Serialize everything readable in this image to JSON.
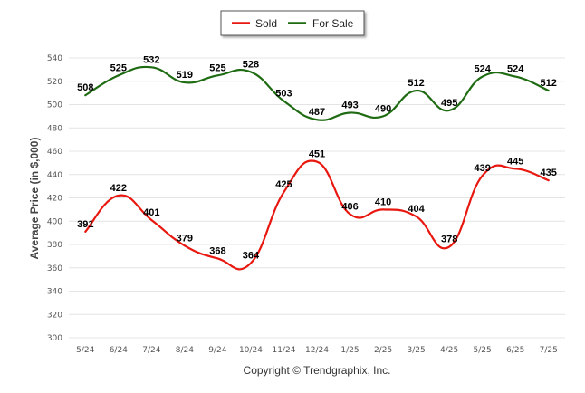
{
  "chart_data": {
    "type": "line",
    "categories": [
      "5/24",
      "6/24",
      "7/24",
      "8/24",
      "9/24",
      "10/24",
      "11/24",
      "12/24",
      "1/25",
      "2/25",
      "3/25",
      "4/25",
      "5/25",
      "6/25",
      "7/25"
    ],
    "series": [
      {
        "name": "Sold",
        "color": "#e8170f",
        "values": [
          391,
          422,
          401,
          379,
          368,
          364,
          425,
          451,
          406,
          410,
          404,
          378,
          439,
          445,
          435
        ]
      },
      {
        "name": "For Sale",
        "color": "#1e6b12",
        "values": [
          508,
          525,
          532,
          519,
          525,
          528,
          503,
          487,
          493,
          490,
          512,
          495,
          524,
          524,
          512
        ]
      }
    ],
    "ylabel": "Average Price (in $,000)",
    "ylim": [
      300,
      540
    ],
    "yticks": [
      300,
      320,
      340,
      360,
      380,
      400,
      420,
      440,
      460,
      480,
      500,
      520,
      540
    ],
    "grid": true,
    "legend_position": "top-center"
  },
  "footer": {
    "copyright": "Copyright © Trendgraphix, Inc."
  }
}
